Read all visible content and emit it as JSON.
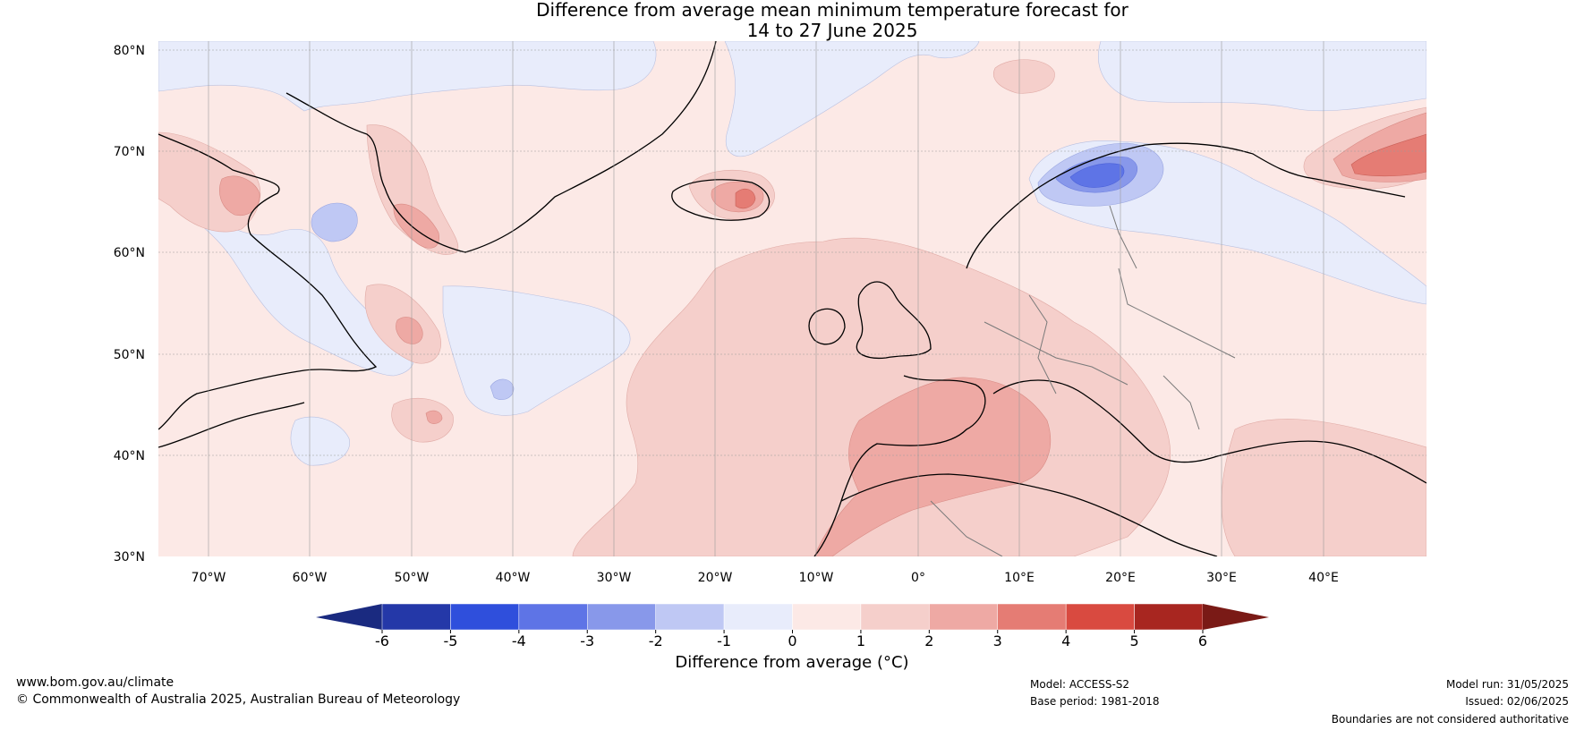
{
  "title_line1": "Difference from average mean minimum temperature forecast for",
  "title_line2": "14 to 27 June 2025",
  "lat_labels": [
    "80°N",
    "70°N",
    "60°N",
    "50°N",
    "40°N",
    "30°N"
  ],
  "lon_labels": [
    "70°W",
    "60°W",
    "50°W",
    "40°W",
    "30°W",
    "20°W",
    "10°W",
    "0°",
    "10°E",
    "20°E",
    "30°E",
    "40°E"
  ],
  "colorbar": {
    "title": "Difference from average (°C)",
    "ticks": [
      "-6",
      "-5",
      "-4",
      "-3",
      "-2",
      "-1",
      "0",
      "1",
      "2",
      "3",
      "4",
      "5",
      "6"
    ],
    "colors": [
      "#2438a8",
      "#2f4fdc",
      "#5e74e6",
      "#8898ea",
      "#bfc8f4",
      "#e8ecfb",
      "#fce9e6",
      "#f5cfcb",
      "#eea9a4",
      "#e57c74",
      "#d94a40",
      "#a82620"
    ],
    "under_color": "#1a2a80",
    "over_color": "#7a1a16"
  },
  "footer": {
    "website": "www.bom.gov.au/climate",
    "copyright": "© Commonwealth of Australia 2025, Australian Bureau of Meteorology",
    "model": "Model: ACCESS-S2",
    "base_period": "Base period: 1981-2018",
    "model_run": "Model run: 31/05/2025",
    "issued": "Issued: 02/06/2025",
    "disclaimer": "Boundaries are not considered authoritative"
  }
}
